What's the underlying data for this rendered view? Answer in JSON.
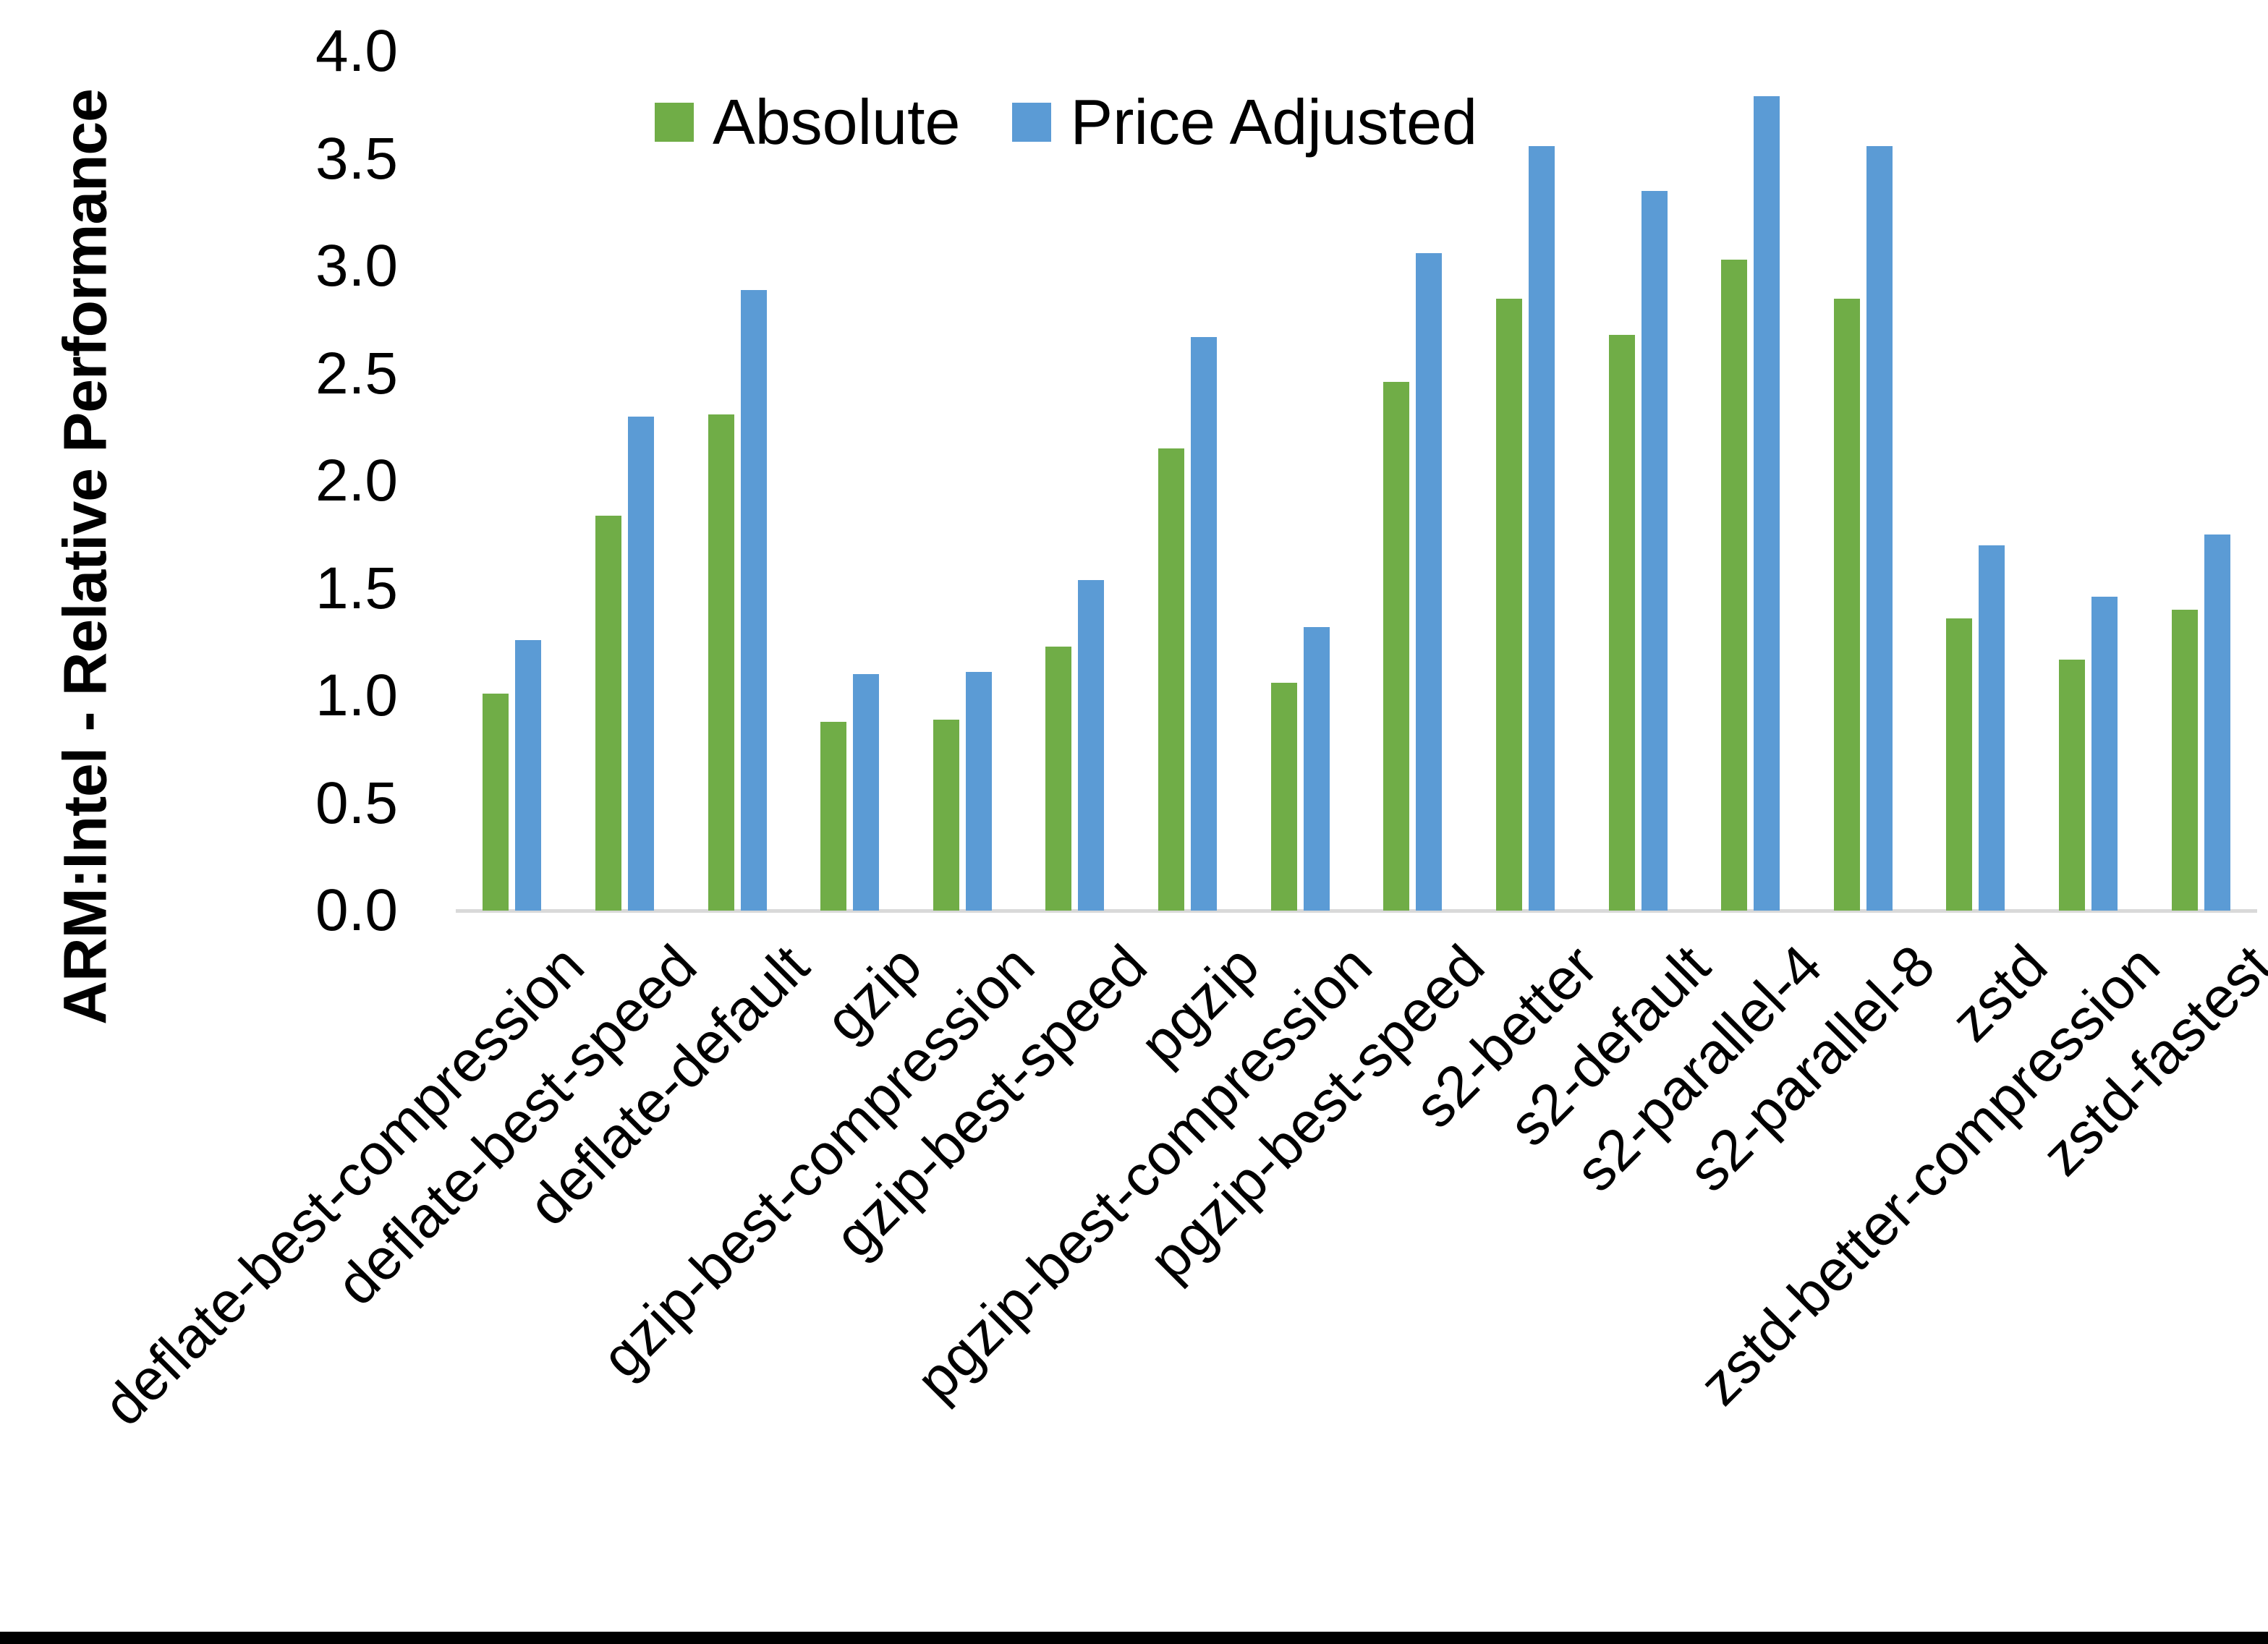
{
  "y_axis": {
    "title": "ARM:Intel - Relative Performance",
    "tick_labels": [
      "4.0",
      "3.5",
      "3.0",
      "2.5",
      "2.0",
      "1.5",
      "1.0",
      "0.5",
      "0.0"
    ],
    "min": 0.0,
    "max": 4.0
  },
  "legend": {
    "items": [
      {
        "label": "Absolute",
        "color": "#70AD47"
      },
      {
        "label": "Price Adjusted",
        "color": "#5B9BD5"
      }
    ]
  },
  "colors": {
    "absolute_green": "#70AD47",
    "price_adjusted_blue": "#5B9BD5",
    "axis_line_gray": "#D9D9D9",
    "bottom_border_black": "#000000"
  },
  "chart_data": {
    "type": "bar",
    "title": "",
    "xlabel": "",
    "ylabel": "ARM:Intel - Relative Performance",
    "ylim": [
      0,
      4
    ],
    "ytick_step": 0.5,
    "grid": false,
    "legend_position": "top-center",
    "bar_orientation": "vertical",
    "categories": [
      "deflate-best-compression",
      "deflate-best-speed",
      "deflate-default",
      "gzip",
      "gzip-best-compression",
      "gzip-best-speed",
      "pgzip",
      "pgzip-best-compression",
      "pgzip-best-speed",
      "s2-better",
      "s2-default",
      "s2-parallel-4",
      "s2-parallel-8",
      "zstd",
      "zstd-better-compression",
      "zstd-fastest"
    ],
    "series": [
      {
        "name": "Absolute",
        "color": "#70AD47",
        "values": [
          1.01,
          1.84,
          2.31,
          0.88,
          0.89,
          1.23,
          2.15,
          1.06,
          2.46,
          2.85,
          2.68,
          3.03,
          2.85,
          1.36,
          1.17,
          1.4
        ]
      },
      {
        "name": "Price Adjusted",
        "color": "#5B9BD5",
        "values": [
          1.26,
          2.3,
          2.89,
          1.1,
          1.11,
          1.54,
          2.67,
          1.32,
          3.06,
          3.56,
          3.35,
          3.79,
          3.56,
          1.7,
          1.46,
          1.75
        ]
      }
    ]
  }
}
